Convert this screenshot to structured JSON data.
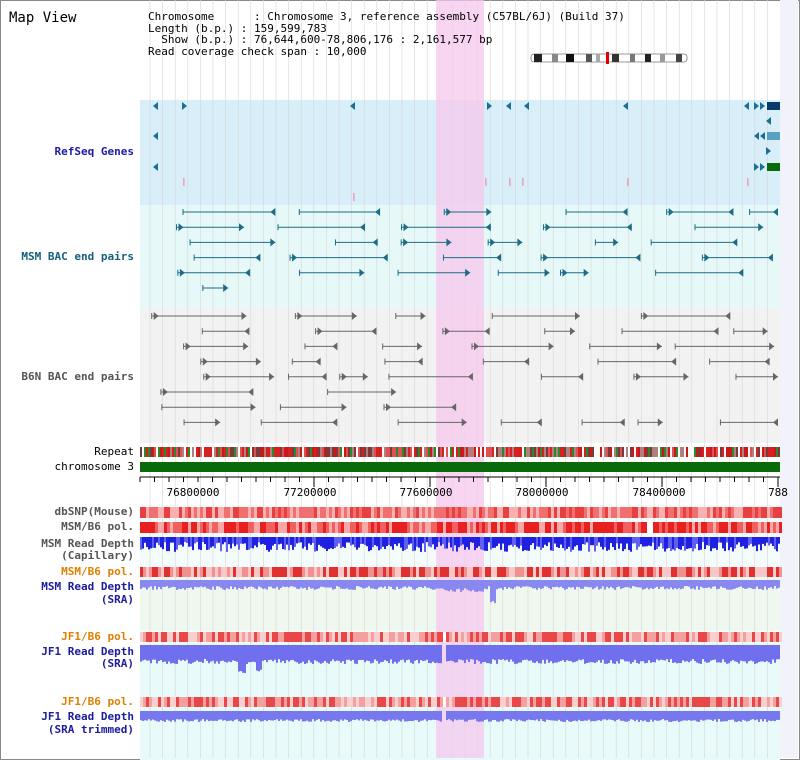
{
  "title": "Map View",
  "info": {
    "line1": "Chromosome      : Chromosome 3, reference assembly (C57BL/6J) (Build 37)",
    "line2": "Length (b.p.) : 159,599,783",
    "line3": "  Show (b.p.) : 76,644,600-78,806,176 : 2,161,577 bp",
    "line4": "Read coverage check span : 10,000"
  },
  "tracks": {
    "refseq": "RefSeq Genes",
    "msm_bac": "MSM BAC end pairs",
    "b6n_bac": "B6N BAC end pairs",
    "repeat": "Repeat",
    "chromosome": "chromosome 3",
    "dbsnp": "dbSNP(Mouse)",
    "msm_b6_pol": "MSM/B6 pol.",
    "msm_read_depth_cap_1": "MSM Read Depth",
    "msm_read_depth_cap_2": "(Capillary)",
    "msm_b6_pol_2": "MSM/B6 pol.",
    "msm_read_depth_sra_1": "MSM Read Depth",
    "msm_read_depth_sra_2": "(SRA)",
    "jf1_b6_pol": "JF1/B6 pol.",
    "jf1_read_depth_sra_1": "JF1 Read Depth",
    "jf1_read_depth_sra_2": "(SRA)",
    "jf1_b6_pol_2": "JF1/B6 pol.",
    "jf1_read_depth_trim_1": "JF1 Read Depth",
    "jf1_read_depth_trim_2": "(SRA trimmed)"
  },
  "axis": {
    "ticks": [
      "76800000",
      "77200000",
      "77600000",
      "78000000",
      "78400000",
      "788"
    ]
  },
  "colors": {
    "refseq_bg": "#d8eef8",
    "msm_bg": "#e6f8f8",
    "b6n_bg": "#f2f2f2",
    "highlight": "#f6c8ee",
    "chrom_bar": "#0a6a0a"
  }
}
